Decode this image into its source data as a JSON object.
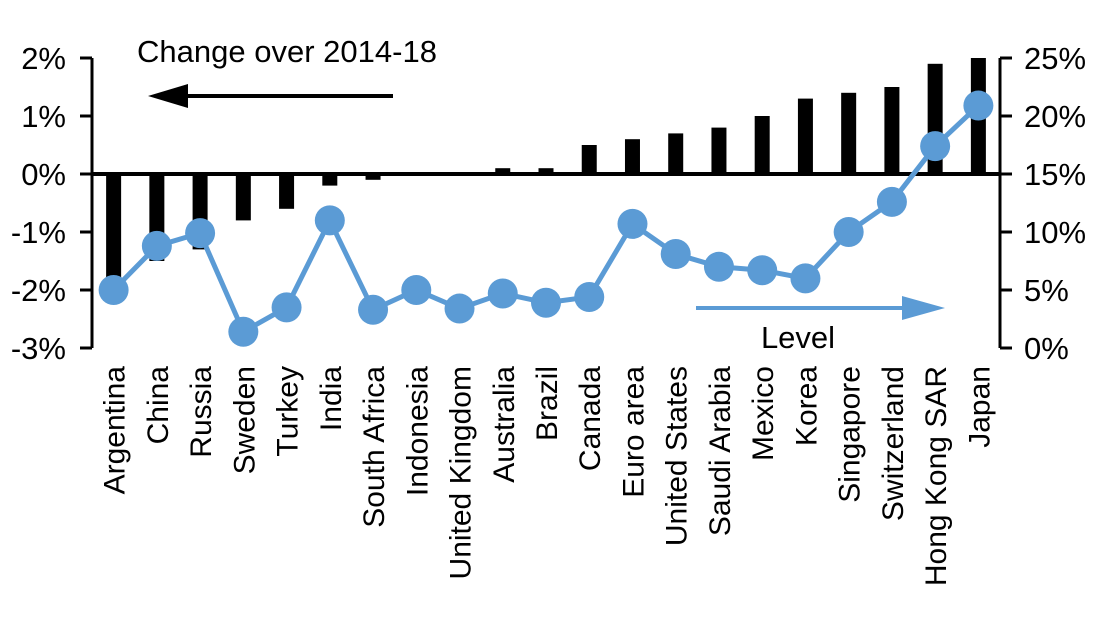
{
  "chart_data": {
    "type": "bar+line combo",
    "title": "",
    "categories": [
      "Argentina",
      "China",
      "Russia",
      "Sweden",
      "Turkey",
      "India",
      "South Africa",
      "Indonesia",
      "United Kingdom",
      "Australia",
      "Brazil",
      "Canada",
      "Euro area",
      "United States",
      "Saudi Arabia",
      "Mexico",
      "Korea",
      "Singapore",
      "Switzerland",
      "Hong Kong SAR",
      "Japan"
    ],
    "series": [
      {
        "name": "Change over 2014-18",
        "type": "bar",
        "axis": "left",
        "color": "#000000",
        "values": [
          -1.8,
          -1.5,
          -1.3,
          -0.8,
          -0.6,
          -0.2,
          -0.1,
          0.0,
          0.0,
          0.1,
          0.1,
          0.5,
          0.6,
          0.7,
          0.8,
          1.0,
          1.3,
          1.4,
          1.5,
          1.9,
          2.0
        ]
      },
      {
        "name": "Level",
        "type": "line",
        "axis": "right",
        "color": "#5B9BD5",
        "values": [
          5.0,
          8.8,
          9.9,
          1.4,
          3.5,
          11.0,
          3.3,
          5.0,
          3.4,
          4.7,
          3.9,
          4.4,
          10.7,
          8.1,
          7.0,
          6.7,
          6.0,
          10.0,
          12.6,
          17.4,
          20.9
        ]
      }
    ],
    "left_axis": {
      "tick_labels": [
        "2%",
        "1%",
        "0%",
        "-1%",
        "-2%",
        "-3%"
      ],
      "tick_values": [
        2,
        1,
        0,
        -1,
        -2,
        -3
      ],
      "max": 2,
      "min": -3
    },
    "right_axis": {
      "tick_labels": [
        "25%",
        "20%",
        "15%",
        "10%",
        "5%",
        "0%"
      ],
      "tick_values": [
        25,
        20,
        15,
        10,
        5,
        0
      ],
      "max": 25,
      "min": 0
    },
    "annotations": {
      "left_arrow": {
        "label": "Change over 2014-18",
        "direction": "left",
        "color": "#000000"
      },
      "right_arrow": {
        "label": "Level",
        "direction": "right",
        "color": "#5B9BD5"
      }
    },
    "grid": "off",
    "legend": "none"
  }
}
